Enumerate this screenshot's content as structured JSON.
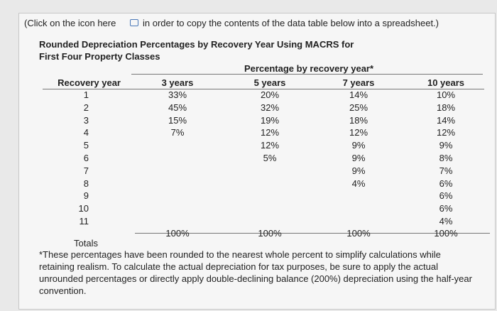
{
  "note": {
    "before_icon": "(Click on the icon here",
    "after_icon": "in order to copy the contents of the data table below into a spreadsheet.)"
  },
  "title": {
    "lines": [
      "Rounded Depreciation Percentages by Recovery Year Using MACRS for",
      "First Four Property Classes"
    ]
  },
  "table": {
    "group_header": "Percentage by recovery year*",
    "columns": [
      "Recovery year",
      "3 years",
      "5 years",
      "7 years",
      "10 years"
    ],
    "rows": [
      [
        "1",
        "33%",
        "20%",
        "14%",
        "10%"
      ],
      [
        "2",
        "45%",
        "32%",
        "25%",
        "18%"
      ],
      [
        "3",
        "15%",
        "19%",
        "18%",
        "14%"
      ],
      [
        "4",
        "7%",
        "12%",
        "12%",
        "12%"
      ],
      [
        "5",
        null,
        "12%",
        "9%",
        "9%"
      ],
      [
        "6",
        null,
        "5%",
        "9%",
        "8%"
      ],
      [
        "7",
        null,
        null,
        "9%",
        "7%"
      ],
      [
        "8",
        null,
        null,
        "4%",
        "6%"
      ],
      [
        "9",
        null,
        null,
        null,
        "6%"
      ],
      [
        "10",
        null,
        null,
        null,
        "6%"
      ],
      [
        "11",
        null,
        null,
        null,
        "4%"
      ]
    ],
    "totals": [
      "Totals",
      "100%",
      "100%",
      "100%",
      "100%"
    ]
  },
  "footnote": {
    "lines": [
      "*These percentages have been rounded to the nearest whole percent to simplify calculations while",
      "retaining realism. To calculate the actual depreciation for tax purposes, be sure to apply the actual",
      "unrounded percentages or directly apply double-declining balance (200%) depreciation using the half-year",
      "convention."
    ]
  }
}
